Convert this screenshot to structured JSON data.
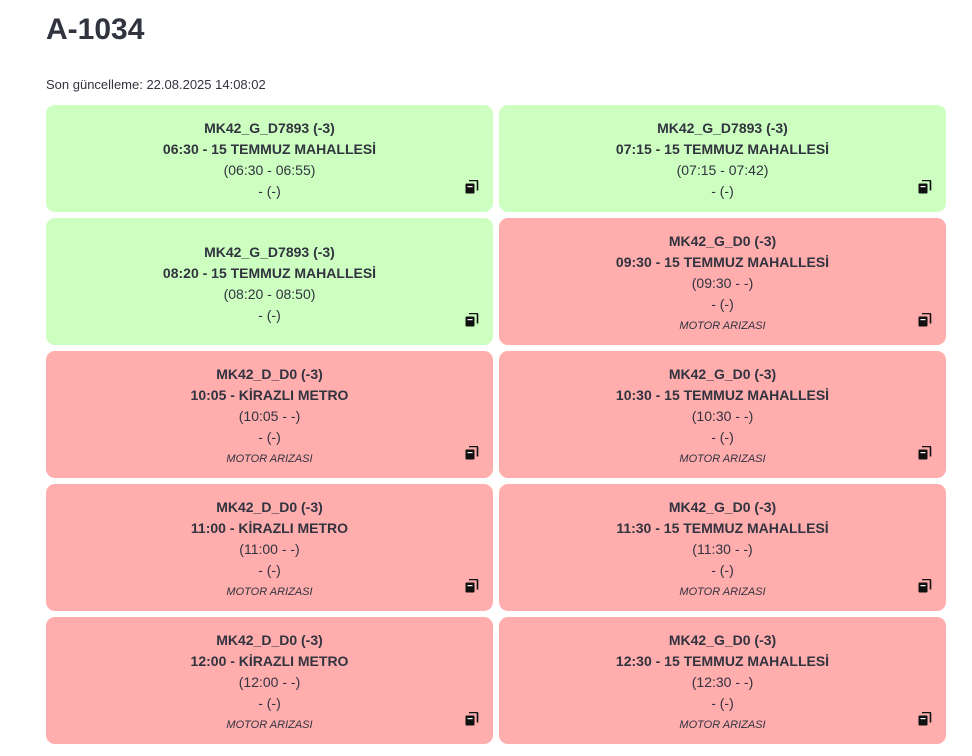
{
  "page": {
    "title": "A-1034",
    "updated": "Son güncelleme: 22.08.2025 14:08:02"
  },
  "colors": {
    "ok": "#ccffc0",
    "fault": "#ffadad",
    "text": "#31333f"
  },
  "cards": [
    {
      "code": "MK42_G_D7893 (-3)",
      "route": "06:30 - 15 TEMMUZ MAHALLESİ",
      "times": "(06:30 - 06:55)",
      "extra": "- (-)",
      "reason": "",
      "status": "ok",
      "icon": "copy-icon"
    },
    {
      "code": "MK42_G_D7893 (-3)",
      "route": "07:15 - 15 TEMMUZ MAHALLESİ",
      "times": "(07:15 - 07:42)",
      "extra": "- (-)",
      "reason": "",
      "status": "ok",
      "icon": "copy-icon"
    },
    {
      "code": "MK42_G_D7893 (-3)",
      "route": "08:20 - 15 TEMMUZ MAHALLESİ",
      "times": "(08:20 - 08:50)",
      "extra": "- (-)",
      "reason": "",
      "status": "ok",
      "icon": "copy-icon"
    },
    {
      "code": "MK42_G_D0 (-3)",
      "route": "09:30 - 15 TEMMUZ MAHALLESİ",
      "times": "(09:30 - -)",
      "extra": "- (-)",
      "reason": "MOTOR ARIZASI",
      "status": "fault",
      "icon": "copy-icon"
    },
    {
      "code": "MK42_D_D0 (-3)",
      "route": "10:05 - KİRAZLI METRO",
      "times": "(10:05 - -)",
      "extra": "- (-)",
      "reason": "MOTOR ARIZASI",
      "status": "fault",
      "icon": "copy-icon"
    },
    {
      "code": "MK42_G_D0 (-3)",
      "route": "10:30 - 15 TEMMUZ MAHALLESİ",
      "times": "(10:30 - -)",
      "extra": "- (-)",
      "reason": "MOTOR ARIZASI",
      "status": "fault",
      "icon": "copy-icon"
    },
    {
      "code": "MK42_D_D0 (-3)",
      "route": "11:00 - KİRAZLI METRO",
      "times": "(11:00 - -)",
      "extra": "- (-)",
      "reason": "MOTOR ARIZASI",
      "status": "fault",
      "icon": "copy-icon"
    },
    {
      "code": "MK42_G_D0 (-3)",
      "route": "11:30 - 15 TEMMUZ MAHALLESİ",
      "times": "(11:30 - -)",
      "extra": "- (-)",
      "reason": "MOTOR ARIZASI",
      "status": "fault",
      "icon": "copy-icon"
    },
    {
      "code": "MK42_D_D0 (-3)",
      "route": "12:00 - KİRAZLI METRO",
      "times": "(12:00 - -)",
      "extra": "- (-)",
      "reason": "MOTOR ARIZASI",
      "status": "fault",
      "icon": "copy-icon"
    },
    {
      "code": "MK42_G_D0 (-3)",
      "route": "12:30 - 15 TEMMUZ MAHALLESİ",
      "times": "(12:30 - -)",
      "extra": "- (-)",
      "reason": "MOTOR ARIZASI",
      "status": "fault",
      "icon": "copy-icon"
    }
  ]
}
